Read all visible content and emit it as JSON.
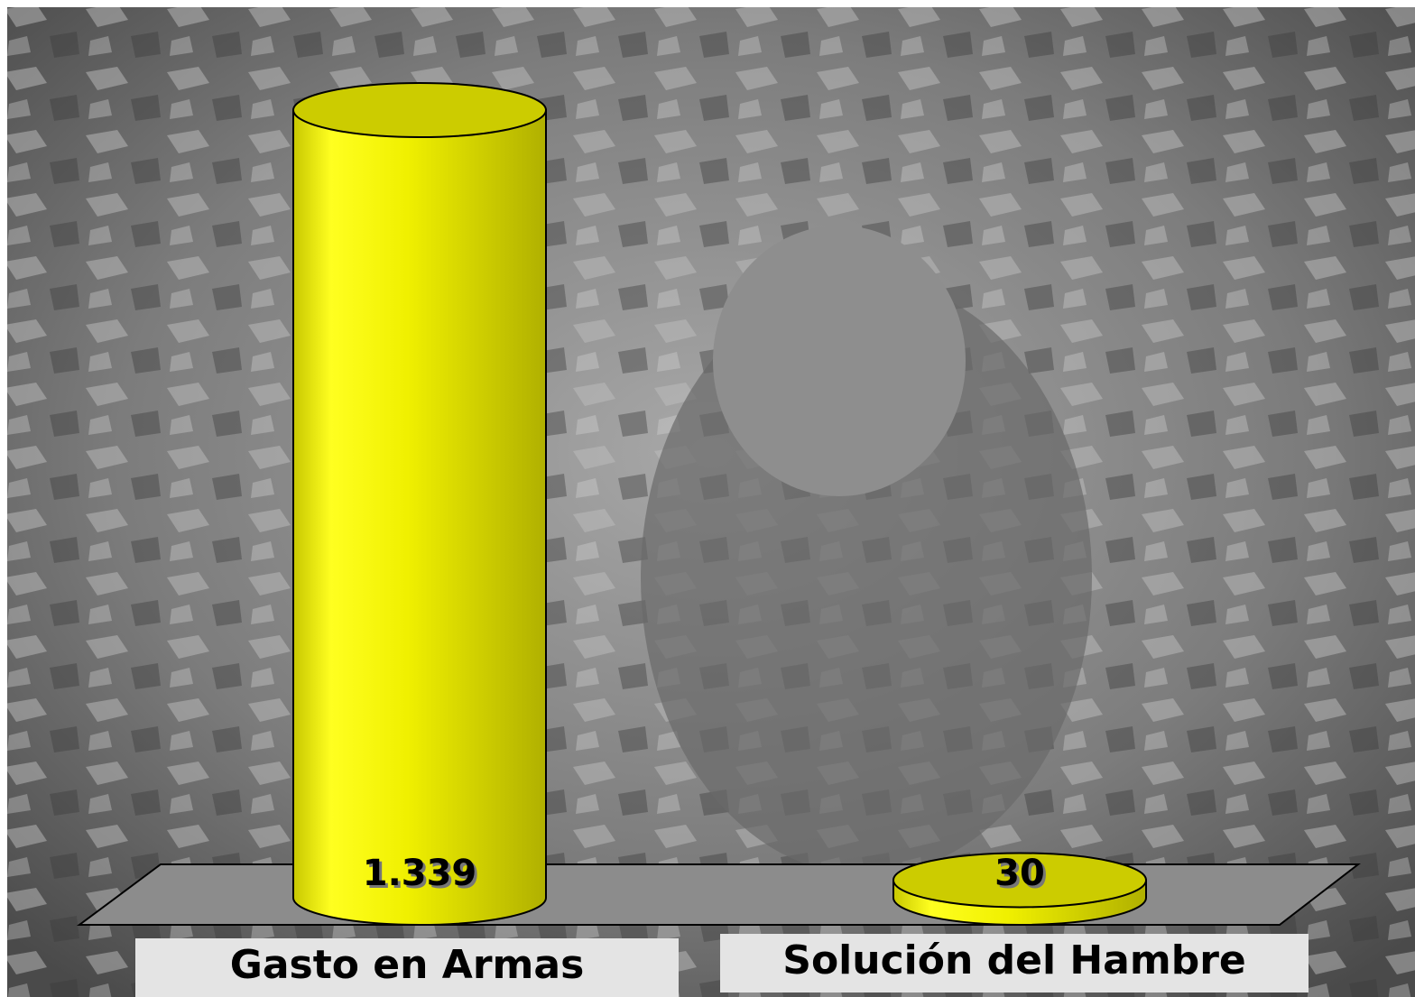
{
  "chart_data": {
    "type": "bar3d",
    "categories": [
      "Gasto en Armas",
      "Solución del Hambre"
    ],
    "values": [
      1339,
      30
    ],
    "value_labels": [
      "1.339",
      "30"
    ],
    "color": "#eeee00"
  }
}
